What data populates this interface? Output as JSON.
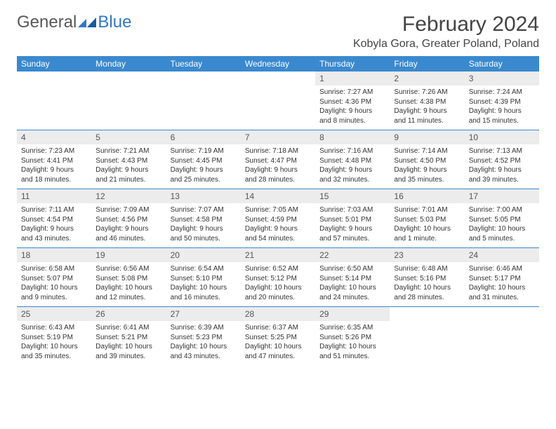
{
  "brand": {
    "part1": "General",
    "part2": "Blue"
  },
  "title": "February 2024",
  "location": "Kobyla Gora, Greater Poland, Poland",
  "colors": {
    "header_bg": "#3a89cf",
    "daynum_bg": "#ececec",
    "rule": "#3a89cf"
  },
  "weekdays": [
    "Sunday",
    "Monday",
    "Tuesday",
    "Wednesday",
    "Thursday",
    "Friday",
    "Saturday"
  ],
  "weeks": [
    [
      {
        "empty": true
      },
      {
        "empty": true
      },
      {
        "empty": true
      },
      {
        "empty": true
      },
      {
        "n": "1",
        "sunrise": "7:27 AM",
        "sunset": "4:36 PM",
        "daylight": "9 hours and 8 minutes."
      },
      {
        "n": "2",
        "sunrise": "7:26 AM",
        "sunset": "4:38 PM",
        "daylight": "9 hours and 11 minutes."
      },
      {
        "n": "3",
        "sunrise": "7:24 AM",
        "sunset": "4:39 PM",
        "daylight": "9 hours and 15 minutes."
      }
    ],
    [
      {
        "n": "4",
        "sunrise": "7:23 AM",
        "sunset": "4:41 PM",
        "daylight": "9 hours and 18 minutes."
      },
      {
        "n": "5",
        "sunrise": "7:21 AM",
        "sunset": "4:43 PM",
        "daylight": "9 hours and 21 minutes."
      },
      {
        "n": "6",
        "sunrise": "7:19 AM",
        "sunset": "4:45 PM",
        "daylight": "9 hours and 25 minutes."
      },
      {
        "n": "7",
        "sunrise": "7:18 AM",
        "sunset": "4:47 PM",
        "daylight": "9 hours and 28 minutes."
      },
      {
        "n": "8",
        "sunrise": "7:16 AM",
        "sunset": "4:48 PM",
        "daylight": "9 hours and 32 minutes."
      },
      {
        "n": "9",
        "sunrise": "7:14 AM",
        "sunset": "4:50 PM",
        "daylight": "9 hours and 35 minutes."
      },
      {
        "n": "10",
        "sunrise": "7:13 AM",
        "sunset": "4:52 PM",
        "daylight": "9 hours and 39 minutes."
      }
    ],
    [
      {
        "n": "11",
        "sunrise": "7:11 AM",
        "sunset": "4:54 PM",
        "daylight": "9 hours and 43 minutes."
      },
      {
        "n": "12",
        "sunrise": "7:09 AM",
        "sunset": "4:56 PM",
        "daylight": "9 hours and 46 minutes."
      },
      {
        "n": "13",
        "sunrise": "7:07 AM",
        "sunset": "4:58 PM",
        "daylight": "9 hours and 50 minutes."
      },
      {
        "n": "14",
        "sunrise": "7:05 AM",
        "sunset": "4:59 PM",
        "daylight": "9 hours and 54 minutes."
      },
      {
        "n": "15",
        "sunrise": "7:03 AM",
        "sunset": "5:01 PM",
        "daylight": "9 hours and 57 minutes."
      },
      {
        "n": "16",
        "sunrise": "7:01 AM",
        "sunset": "5:03 PM",
        "daylight": "10 hours and 1 minute."
      },
      {
        "n": "17",
        "sunrise": "7:00 AM",
        "sunset": "5:05 PM",
        "daylight": "10 hours and 5 minutes."
      }
    ],
    [
      {
        "n": "18",
        "sunrise": "6:58 AM",
        "sunset": "5:07 PM",
        "daylight": "10 hours and 9 minutes."
      },
      {
        "n": "19",
        "sunrise": "6:56 AM",
        "sunset": "5:08 PM",
        "daylight": "10 hours and 12 minutes."
      },
      {
        "n": "20",
        "sunrise": "6:54 AM",
        "sunset": "5:10 PM",
        "daylight": "10 hours and 16 minutes."
      },
      {
        "n": "21",
        "sunrise": "6:52 AM",
        "sunset": "5:12 PM",
        "daylight": "10 hours and 20 minutes."
      },
      {
        "n": "22",
        "sunrise": "6:50 AM",
        "sunset": "5:14 PM",
        "daylight": "10 hours and 24 minutes."
      },
      {
        "n": "23",
        "sunrise": "6:48 AM",
        "sunset": "5:16 PM",
        "daylight": "10 hours and 28 minutes."
      },
      {
        "n": "24",
        "sunrise": "6:46 AM",
        "sunset": "5:17 PM",
        "daylight": "10 hours and 31 minutes."
      }
    ],
    [
      {
        "n": "25",
        "sunrise": "6:43 AM",
        "sunset": "5:19 PM",
        "daylight": "10 hours and 35 minutes."
      },
      {
        "n": "26",
        "sunrise": "6:41 AM",
        "sunset": "5:21 PM",
        "daylight": "10 hours and 39 minutes."
      },
      {
        "n": "27",
        "sunrise": "6:39 AM",
        "sunset": "5:23 PM",
        "daylight": "10 hours and 43 minutes."
      },
      {
        "n": "28",
        "sunrise": "6:37 AM",
        "sunset": "5:25 PM",
        "daylight": "10 hours and 47 minutes."
      },
      {
        "n": "29",
        "sunrise": "6:35 AM",
        "sunset": "5:26 PM",
        "daylight": "10 hours and 51 minutes."
      },
      {
        "empty": true
      },
      {
        "empty": true
      }
    ]
  ],
  "labels": {
    "sunrise": "Sunrise: ",
    "sunset": "Sunset: ",
    "daylight": "Daylight: "
  }
}
